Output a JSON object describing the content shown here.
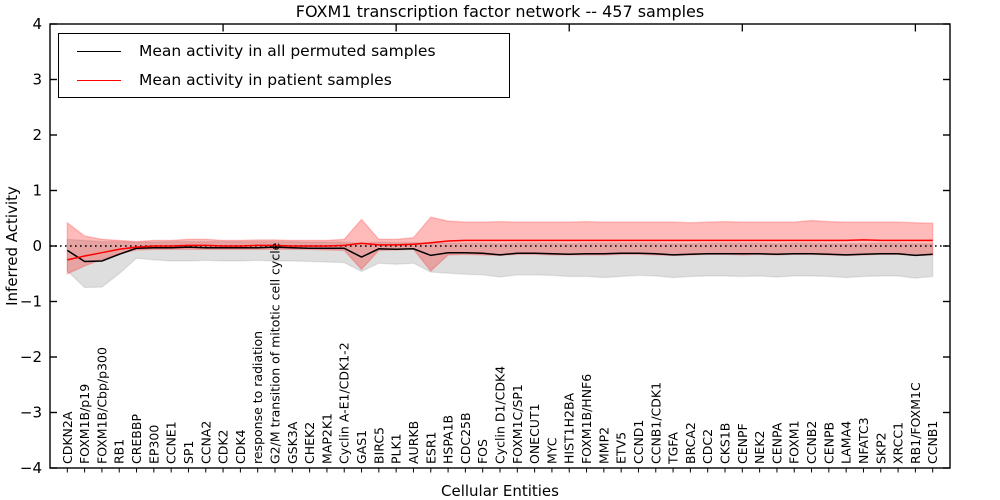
{
  "chart_data": {
    "type": "line",
    "title": "FOXM1 transcription factor network -- 457 samples",
    "xlabel": "Cellular Entities",
    "ylabel": "Inferred Activity",
    "ylim": [
      -4,
      4
    ],
    "xlim": [
      0,
      52
    ],
    "ytick_values": [
      4,
      3,
      2,
      1,
      0,
      -1,
      -2,
      -3,
      -4
    ],
    "ytick_labels": [
      "4",
      "3",
      "2",
      "1",
      "0",
      "−1",
      "−2",
      "−3",
      "−4"
    ],
    "top_axis_tick_positions": [
      10,
      20,
      30,
      40,
      50
    ],
    "grid": false,
    "legend_position": "upper left",
    "reference_line": {
      "y": 0.0,
      "style": "dotted",
      "color": "#000000"
    },
    "categories": [
      "CDKN2A",
      "FOXM1B/p19",
      "FOXM1B/Cbp/p300",
      "RB1",
      "CREBBP",
      "EP300",
      "CCNE1",
      "SP1",
      "CCNA2",
      "CDK2",
      "CDK4",
      "response to radiation",
      "G2/M transition of mitotic cell cycle",
      "GSK3A",
      "CHEK2",
      "MAP2K1",
      "Cyclin A-E1/CDK1-2",
      "GAS1",
      "BIRC5",
      "PLK1",
      "AURKB",
      "ESR1",
      "HSPA1B",
      "CDC25B",
      "FOS",
      "Cyclin D1/CDK4",
      "FOXM1C/SP1",
      "ONECUT1",
      "MYC",
      "HIST1H2BA",
      "FOXM1B/HNF6",
      "MMP2",
      "ETV5",
      "CCND1",
      "CCNB1/CDK1",
      "TGFA",
      "BRCA2",
      "CDC2",
      "CKS1B",
      "CENPF",
      "NEK2",
      "CENPA",
      "FOXM1",
      "CCNB2",
      "CENPB",
      "LAMA4",
      "NFATC3",
      "SKP2",
      "XRCC1",
      "RB1/FOXM1C",
      "CCNB1"
    ],
    "series": [
      {
        "name": "Mean activity in all permuted samples",
        "color": "#000000",
        "band_color": "rgba(0,0,0,0.13)",
        "band_edge_color": "rgba(0,0,0,0.08)",
        "values": [
          -0.08,
          -0.28,
          -0.27,
          -0.15,
          -0.04,
          -0.03,
          -0.03,
          -0.02,
          -0.03,
          -0.03,
          -0.03,
          -0.03,
          -0.02,
          -0.03,
          -0.04,
          -0.04,
          -0.04,
          -0.2,
          -0.05,
          -0.06,
          -0.05,
          -0.17,
          -0.12,
          -0.12,
          -0.13,
          -0.16,
          -0.13,
          -0.13,
          -0.14,
          -0.15,
          -0.14,
          -0.14,
          -0.13,
          -0.13,
          -0.14,
          -0.16,
          -0.15,
          -0.14,
          -0.14,
          -0.14,
          -0.14,
          -0.15,
          -0.14,
          -0.14,
          -0.15,
          -0.16,
          -0.15,
          -0.14,
          -0.14,
          -0.17,
          -0.15
        ],
        "band_low": [
          -0.45,
          -0.75,
          -0.74,
          -0.5,
          -0.22,
          -0.25,
          -0.27,
          -0.27,
          -0.26,
          -0.27,
          -0.27,
          -0.26,
          -0.27,
          -0.27,
          -0.28,
          -0.29,
          -0.3,
          -0.46,
          -0.31,
          -0.33,
          -0.31,
          -0.47,
          -0.49,
          -0.51,
          -0.52,
          -0.56,
          -0.52,
          -0.52,
          -0.53,
          -0.55,
          -0.55,
          -0.57,
          -0.55,
          -0.53,
          -0.54,
          -0.57,
          -0.55,
          -0.54,
          -0.54,
          -0.55,
          -0.54,
          -0.56,
          -0.54,
          -0.54,
          -0.55,
          -0.57,
          -0.55,
          -0.54,
          -0.54,
          -0.58,
          -0.55
        ],
        "band_high": [
          0.12,
          0.1,
          0.08,
          0.08,
          0.07,
          0.07,
          0.08,
          0.08,
          0.08,
          0.08,
          0.08,
          0.08,
          0.08,
          0.08,
          0.07,
          0.07,
          0.07,
          0.05,
          0.07,
          0.06,
          0.06,
          0.05,
          0.05,
          0.05,
          0.05,
          0.04,
          0.05,
          0.05,
          0.05,
          0.04,
          0.05,
          0.05,
          0.05,
          0.05,
          0.05,
          0.04,
          0.04,
          0.05,
          0.05,
          0.05,
          0.05,
          0.04,
          0.05,
          0.05,
          0.04,
          0.04,
          0.04,
          0.05,
          0.05,
          0.04,
          0.04
        ]
      },
      {
        "name": "Mean activity in patient samples",
        "color": "#ff0000",
        "band_color": "rgba(255,0,0,0.27)",
        "band_edge_color": "rgba(255,0,0,0.20)",
        "values": [
          -0.25,
          -0.18,
          -0.12,
          -0.06,
          -0.02,
          0.0,
          0.0,
          0.01,
          0.01,
          0.0,
          0.0,
          0.01,
          0.01,
          0.0,
          0.0,
          0.0,
          0.01,
          0.05,
          0.02,
          0.02,
          0.03,
          0.06,
          0.09,
          0.1,
          0.1,
          0.1,
          0.1,
          0.1,
          0.1,
          0.1,
          0.1,
          0.1,
          0.1,
          0.1,
          0.1,
          0.1,
          0.1,
          0.1,
          0.1,
          0.1,
          0.1,
          0.1,
          0.1,
          0.1,
          0.1,
          0.1,
          0.11,
          0.1,
          0.1,
          0.1,
          0.1
        ],
        "band_low": [
          -0.5,
          -0.36,
          -0.24,
          -0.14,
          -0.07,
          -0.06,
          -0.06,
          -0.06,
          -0.06,
          -0.06,
          -0.06,
          -0.06,
          -0.06,
          -0.06,
          -0.06,
          -0.07,
          -0.08,
          -0.42,
          -0.08,
          -0.07,
          -0.06,
          -0.45,
          -0.16,
          -0.15,
          -0.16,
          -0.17,
          -0.15,
          -0.15,
          -0.16,
          -0.16,
          -0.16,
          -0.16,
          -0.15,
          -0.15,
          -0.16,
          -0.17,
          -0.16,
          -0.15,
          -0.15,
          -0.16,
          -0.15,
          -0.16,
          -0.15,
          -0.15,
          -0.16,
          -0.17,
          -0.16,
          -0.15,
          -0.15,
          -0.17,
          -0.16
        ],
        "band_high": [
          0.42,
          0.18,
          0.12,
          0.1,
          0.08,
          0.1,
          0.1,
          0.12,
          0.12,
          0.1,
          0.1,
          0.11,
          0.11,
          0.1,
          0.1,
          0.1,
          0.12,
          0.48,
          0.12,
          0.12,
          0.15,
          0.52,
          0.45,
          0.43,
          0.43,
          0.44,
          0.43,
          0.43,
          0.43,
          0.43,
          0.44,
          0.43,
          0.43,
          0.43,
          0.43,
          0.43,
          0.42,
          0.43,
          0.44,
          0.43,
          0.43,
          0.43,
          0.43,
          0.46,
          0.44,
          0.43,
          0.43,
          0.43,
          0.43,
          0.42,
          0.41
        ]
      }
    ]
  }
}
